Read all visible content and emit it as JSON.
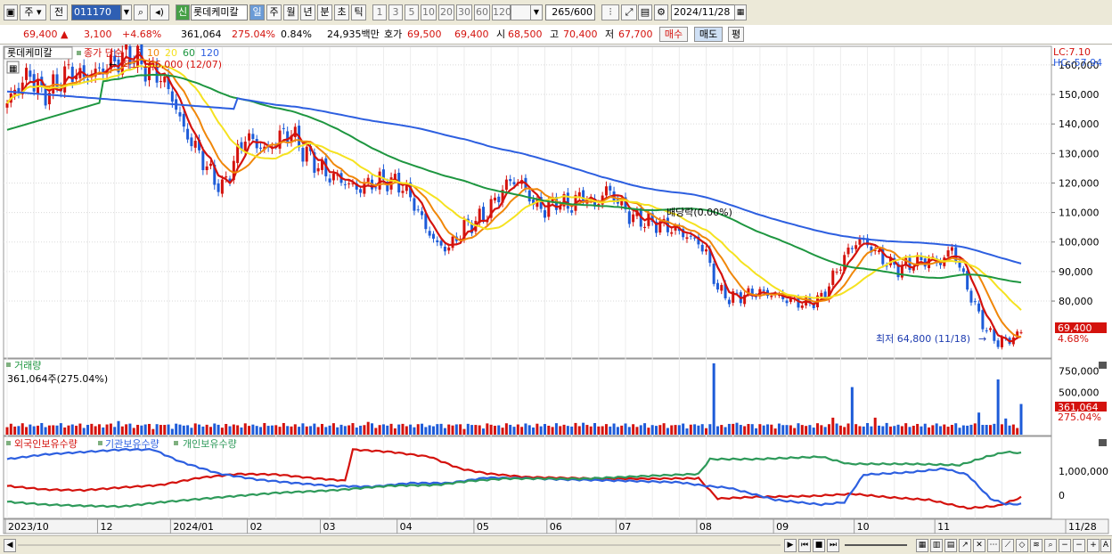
{
  "toolbar": {
    "market": "주",
    "period_pre": "전",
    "code": "011170",
    "credit_badge": "신",
    "stock_name": "롯데케미칼",
    "periods": [
      "일",
      "주",
      "월",
      "년",
      "분",
      "초",
      "틱"
    ],
    "active_period": "일",
    "intervals": [
      "1",
      "3",
      "5",
      "10",
      "20",
      "30",
      "60",
      "120"
    ],
    "count": "265",
    "count_max": "/600",
    "date": "2024/11/28"
  },
  "quote": {
    "price": "69,400",
    "change_arrow": "▲",
    "change": "3,100",
    "change_pct": "+4.68%",
    "volume": "361,064",
    "volume_ratio": "275.04%",
    "turnover": "0.84%",
    "amount": "24,935백만",
    "ask_label": "호가",
    "ask1": "69,500",
    "ask2": "69,400",
    "open_label": "시",
    "open": "68,500",
    "high_label": "고",
    "high": "70,400",
    "low_label": "저",
    "low": "67,700",
    "buy_label": "매수",
    "sell_label": "매도",
    "avg_label": "평"
  },
  "colors": {
    "up": "#d4120d",
    "down": "#1d5bd8",
    "ma5": "#d4120d",
    "ma10": "#f0870a",
    "ma20": "#f5e220",
    "ma60": "#1e9640",
    "ma120": "#2d5fe0",
    "foreign": "#d4120d",
    "institution": "#2d5fe0",
    "individual": "#2e9a5a",
    "accent": "#6b9bd6"
  },
  "chart_data": [
    {
      "type": "candlestick",
      "legend_name": "롯데케미칼",
      "legend_main": "종가 단순",
      "ma_periods": [
        "5",
        "10",
        "20",
        "60",
        "120"
      ],
      "lc": "LC:7.10",
      "hc": "HC:-57.94",
      "y_ticks": [
        "160,000",
        "150,000",
        "140,000",
        "130,000",
        "120,000",
        "110,000",
        "100,000",
        "90,000",
        "80,000"
      ],
      "ylim": [
        61000,
        166000
      ],
      "x_labels": [
        "2023/10",
        "12",
        "2024/01",
        "02",
        "03",
        "04",
        "05",
        "06",
        "07",
        "08",
        "09",
        "10",
        "11",
        "11/28"
      ],
      "x_label_index": [
        0,
        24,
        43,
        63,
        82,
        102,
        122,
        141,
        159,
        180,
        200,
        221,
        242,
        264
      ],
      "anchors": [
        [
          0,
          147000
        ],
        [
          3,
          153000
        ],
        [
          6,
          157000
        ],
        [
          9,
          150000
        ],
        [
          12,
          152000
        ],
        [
          16,
          158000
        ],
        [
          20,
          156000
        ],
        [
          24,
          158000
        ],
        [
          28,
          161000
        ],
        [
          32,
          164000
        ],
        [
          36,
          159000
        ],
        [
          40,
          156000
        ],
        [
          43,
          149000
        ],
        [
          46,
          138000
        ],
        [
          50,
          130000
        ],
        [
          53,
          123000
        ],
        [
          56,
          118000
        ],
        [
          59,
          127000
        ],
        [
          62,
          136000
        ],
        [
          65,
          133000
        ],
        [
          68,
          131000
        ],
        [
          71,
          136000
        ],
        [
          74,
          137000
        ],
        [
          77,
          131000
        ],
        [
          80,
          127000
        ],
        [
          83,
          123000
        ],
        [
          87,
          121000
        ],
        [
          91,
          118000
        ],
        [
          95,
          120000
        ],
        [
          99,
          121000
        ],
        [
          103,
          119000
        ],
        [
          106,
          113000
        ],
        [
          109,
          105000
        ],
        [
          112,
          99000
        ],
        [
          115,
          98000
        ],
        [
          119,
          105000
        ],
        [
          122,
          107000
        ],
        [
          125,
          110000
        ],
        [
          128,
          116000
        ],
        [
          131,
          121000
        ],
        [
          134,
          120000
        ],
        [
          137,
          113000
        ],
        [
          140,
          111000
        ],
        [
          143,
          114000
        ],
        [
          146,
          112000
        ],
        [
          150,
          116000
        ],
        [
          153,
          112000
        ],
        [
          156,
          118000
        ],
        [
          159,
          114000
        ],
        [
          162,
          109000
        ],
        [
          166,
          107000
        ],
        [
          170,
          106000
        ],
        [
          174,
          104000
        ],
        [
          177,
          102000
        ],
        [
          180,
          100000
        ],
        [
          182,
          96000
        ],
        [
          185,
          84000
        ],
        [
          188,
          81000
        ],
        [
          192,
          82000
        ],
        [
          196,
          83000
        ],
        [
          200,
          82000
        ],
        [
          204,
          80000
        ],
        [
          208,
          79000
        ],
        [
          212,
          81000
        ],
        [
          215,
          88000
        ],
        [
          219,
          97000
        ],
        [
          222,
          101000
        ],
        [
          225,
          98000
        ],
        [
          228,
          94000
        ],
        [
          232,
          91000
        ],
        [
          236,
          93000
        ],
        [
          240,
          94000
        ],
        [
          243,
          93000
        ],
        [
          246,
          98000
        ],
        [
          249,
          88000
        ],
        [
          252,
          78000
        ],
        [
          255,
          70000
        ],
        [
          258,
          66000
        ],
        [
          261,
          67000
        ],
        [
          264,
          69400
        ]
      ],
      "marker_high": "최고 166,000 (12/07)",
      "marker_mid": "배당락(0.00%)",
      "marker_low": "최저 64,800 (11/18)",
      "last_price": "69,400",
      "last_pct": "4.68%"
    },
    {
      "type": "bar",
      "title": "거래량",
      "current": "361,064주(275.04%)",
      "y_ticks": [
        "750,000",
        "500,000"
      ],
      "ylim": [
        0,
        860000
      ],
      "spikes": [
        [
          29,
          160000
        ],
        [
          59,
          120000
        ],
        [
          94,
          150000
        ],
        [
          123,
          110000
        ],
        [
          150,
          140000
        ],
        [
          184,
          840000
        ],
        [
          190,
          140000
        ],
        [
          215,
          200000
        ],
        [
          220,
          560000
        ],
        [
          226,
          200000
        ],
        [
          243,
          100000
        ],
        [
          253,
          260000
        ],
        [
          258,
          650000
        ],
        [
          260,
          190000
        ],
        [
          264,
          361064
        ]
      ],
      "base": 110000,
      "last_value": "361,064",
      "last_pct": "275.04%"
    },
    {
      "type": "line",
      "series_names": [
        "외국인보유수량",
        "기관보유수량",
        "개인보유수량"
      ],
      "y_ticks": [
        "1,000,000",
        "0"
      ],
      "ylim": [
        -900000,
        2300000
      ],
      "foreign": [
        [
          0,
          380000
        ],
        [
          10,
          230000
        ],
        [
          20,
          200000
        ],
        [
          30,
          320000
        ],
        [
          40,
          420000
        ],
        [
          50,
          720000
        ],
        [
          60,
          880000
        ],
        [
          70,
          860000
        ],
        [
          80,
          700000
        ],
        [
          88,
          600000
        ],
        [
          90,
          1900000
        ],
        [
          100,
          1800000
        ],
        [
          110,
          1600000
        ],
        [
          118,
          1100000
        ],
        [
          125,
          900000
        ],
        [
          135,
          750000
        ],
        [
          150,
          700000
        ],
        [
          165,
          680000
        ],
        [
          180,
          700000
        ],
        [
          185,
          -150000
        ],
        [
          195,
          -80000
        ],
        [
          210,
          -40000
        ],
        [
          220,
          50000
        ],
        [
          230,
          -100000
        ],
        [
          240,
          -200000
        ],
        [
          250,
          -550000
        ],
        [
          258,
          -450000
        ],
        [
          264,
          -100000
        ]
      ],
      "institution": [
        [
          0,
          1500000
        ],
        [
          10,
          1700000
        ],
        [
          20,
          1800000
        ],
        [
          30,
          1900000
        ],
        [
          38,
          1900000
        ],
        [
          45,
          1400000
        ],
        [
          55,
          900000
        ],
        [
          65,
          650000
        ],
        [
          75,
          500000
        ],
        [
          85,
          380000
        ],
        [
          95,
          350000
        ],
        [
          105,
          500000
        ],
        [
          115,
          500000
        ],
        [
          125,
          730000
        ],
        [
          135,
          700000
        ],
        [
          145,
          650000
        ],
        [
          160,
          600000
        ],
        [
          175,
          530000
        ],
        [
          182,
          380000
        ],
        [
          188,
          300000
        ],
        [
          200,
          -200000
        ],
        [
          212,
          -400000
        ],
        [
          218,
          -300000
        ],
        [
          223,
          850000
        ],
        [
          235,
          950000
        ],
        [
          244,
          1100000
        ],
        [
          250,
          850000
        ],
        [
          256,
          -150000
        ],
        [
          260,
          -380000
        ],
        [
          264,
          -380000
        ]
      ],
      "individual": [
        [
          0,
          -280000
        ],
        [
          10,
          -400000
        ],
        [
          20,
          -450000
        ],
        [
          30,
          -480000
        ],
        [
          40,
          -300000
        ],
        [
          55,
          -100000
        ],
        [
          70,
          90000
        ],
        [
          85,
          200000
        ],
        [
          100,
          390000
        ],
        [
          112,
          420000
        ],
        [
          120,
          580000
        ],
        [
          130,
          690000
        ],
        [
          150,
          680000
        ],
        [
          170,
          820000
        ],
        [
          180,
          880000
        ],
        [
          183,
          1500000
        ],
        [
          195,
          1500000
        ],
        [
          212,
          1600000
        ],
        [
          219,
          1300000
        ],
        [
          235,
          1300000
        ],
        [
          248,
          1250000
        ],
        [
          255,
          1600000
        ],
        [
          260,
          1800000
        ],
        [
          264,
          1750000
        ]
      ]
    }
  ]
}
